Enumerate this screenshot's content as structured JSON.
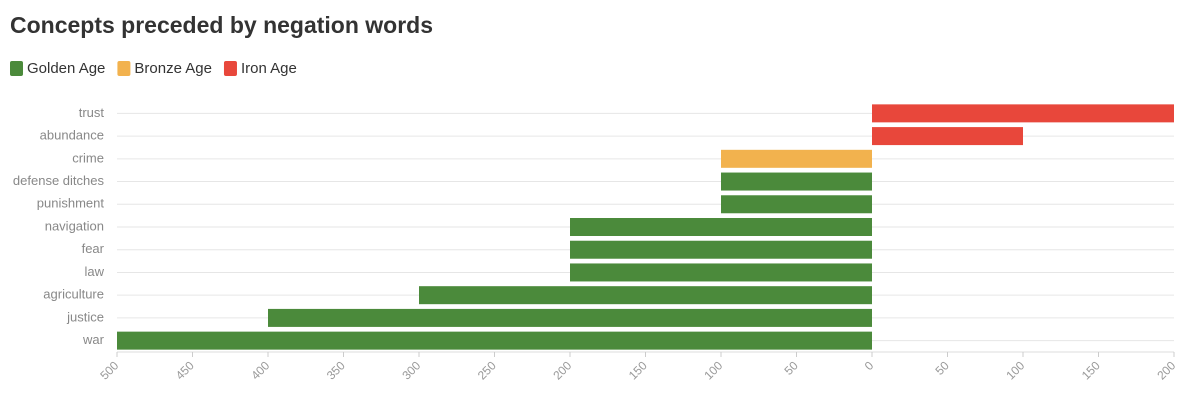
{
  "chart_data": {
    "type": "bar",
    "orientation": "horizontal",
    "title": "Concepts preceded by negation words",
    "categories": [
      "trust",
      "abundance",
      "crime",
      "defense ditches",
      "punishment",
      "navigation",
      "fear",
      "law",
      "agriculture",
      "justice",
      "war"
    ],
    "series": [
      {
        "name": "Golden Age",
        "color": "#4b8a3b",
        "values": [
          null,
          null,
          null,
          -100,
          -100,
          -200,
          -200,
          -200,
          -300,
          -400,
          -500
        ]
      },
      {
        "name": "Bronze Age",
        "color": "#f2b24e",
        "values": [
          null,
          null,
          -100,
          null,
          null,
          null,
          null,
          null,
          null,
          null,
          null
        ]
      },
      {
        "name": "Iron Age",
        "color": "#e8473b",
        "values": [
          200,
          100,
          null,
          null,
          null,
          null,
          null,
          null,
          null,
          null,
          null
        ]
      }
    ],
    "xlim": [
      -500,
      200
    ],
    "xticks": [
      {
        "value": -500,
        "label": "500"
      },
      {
        "value": -450,
        "label": "450"
      },
      {
        "value": -400,
        "label": "400"
      },
      {
        "value": -350,
        "label": "350"
      },
      {
        "value": -300,
        "label": "300"
      },
      {
        "value": -250,
        "label": "250"
      },
      {
        "value": -200,
        "label": "200"
      },
      {
        "value": -150,
        "label": "150"
      },
      {
        "value": -100,
        "label": "100"
      },
      {
        "value": -50,
        "label": "50"
      },
      0,
      50,
      100,
      150,
      200
    ],
    "legend_position": "top-left"
  }
}
